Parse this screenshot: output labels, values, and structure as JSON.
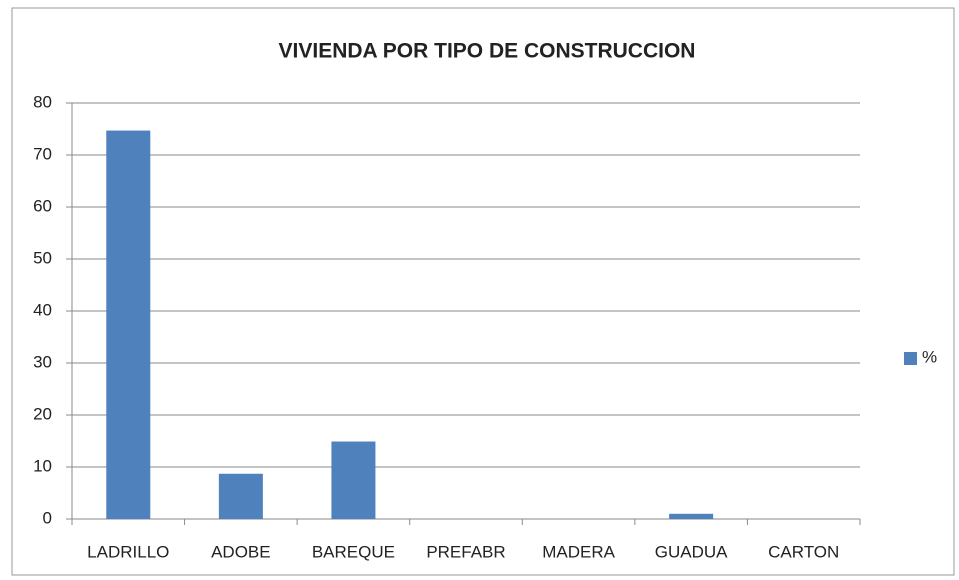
{
  "chart_data": {
    "type": "bar",
    "title": "VIVIENDA POR TIPO DE CONSTRUCCION",
    "categories": [
      "LADRILLO",
      "ADOBE",
      "BAREQUE",
      "PREFABR",
      "MADERA",
      "GUADUA",
      "CARTON"
    ],
    "series": [
      {
        "name": "%",
        "color": "#4f81bd",
        "values": [
          74.7,
          8.7,
          14.9,
          0,
          0,
          1,
          0
        ]
      }
    ],
    "ylim": [
      0,
      80
    ],
    "yticks": [
      0,
      10,
      20,
      30,
      40,
      50,
      60,
      70,
      80
    ],
    "grid": true,
    "legend": "right"
  }
}
